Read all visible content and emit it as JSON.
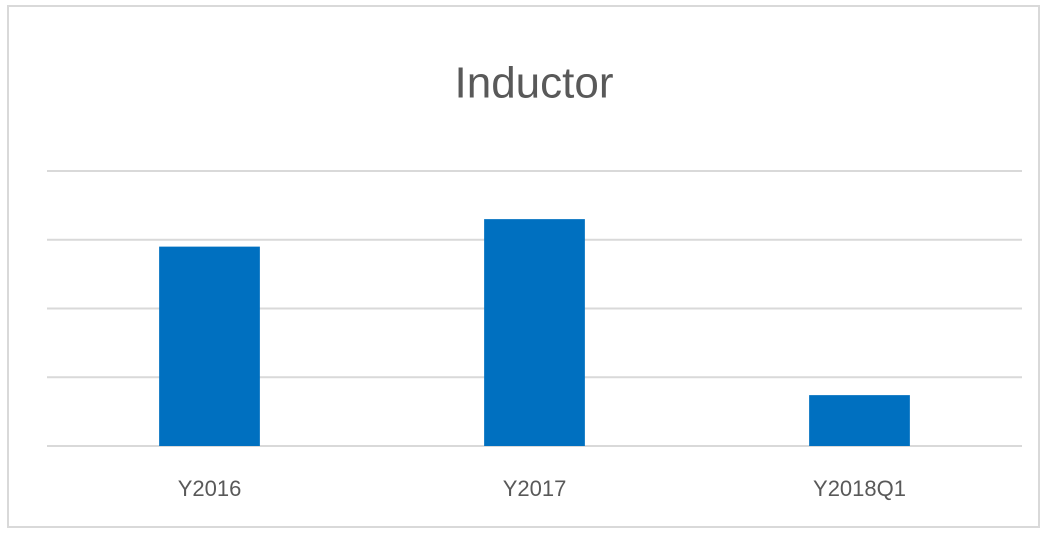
{
  "chart_data": {
    "type": "bar",
    "title": "Inductor",
    "categories": [
      "Y2016",
      "Y2017",
      "Y2018Q1"
    ],
    "values": [
      2.9,
      3.3,
      0.74
    ],
    "color": "#0070c0",
    "ylim": [
      0,
      4
    ],
    "yticks": [
      0,
      1,
      2,
      3,
      4
    ],
    "grid": true
  }
}
